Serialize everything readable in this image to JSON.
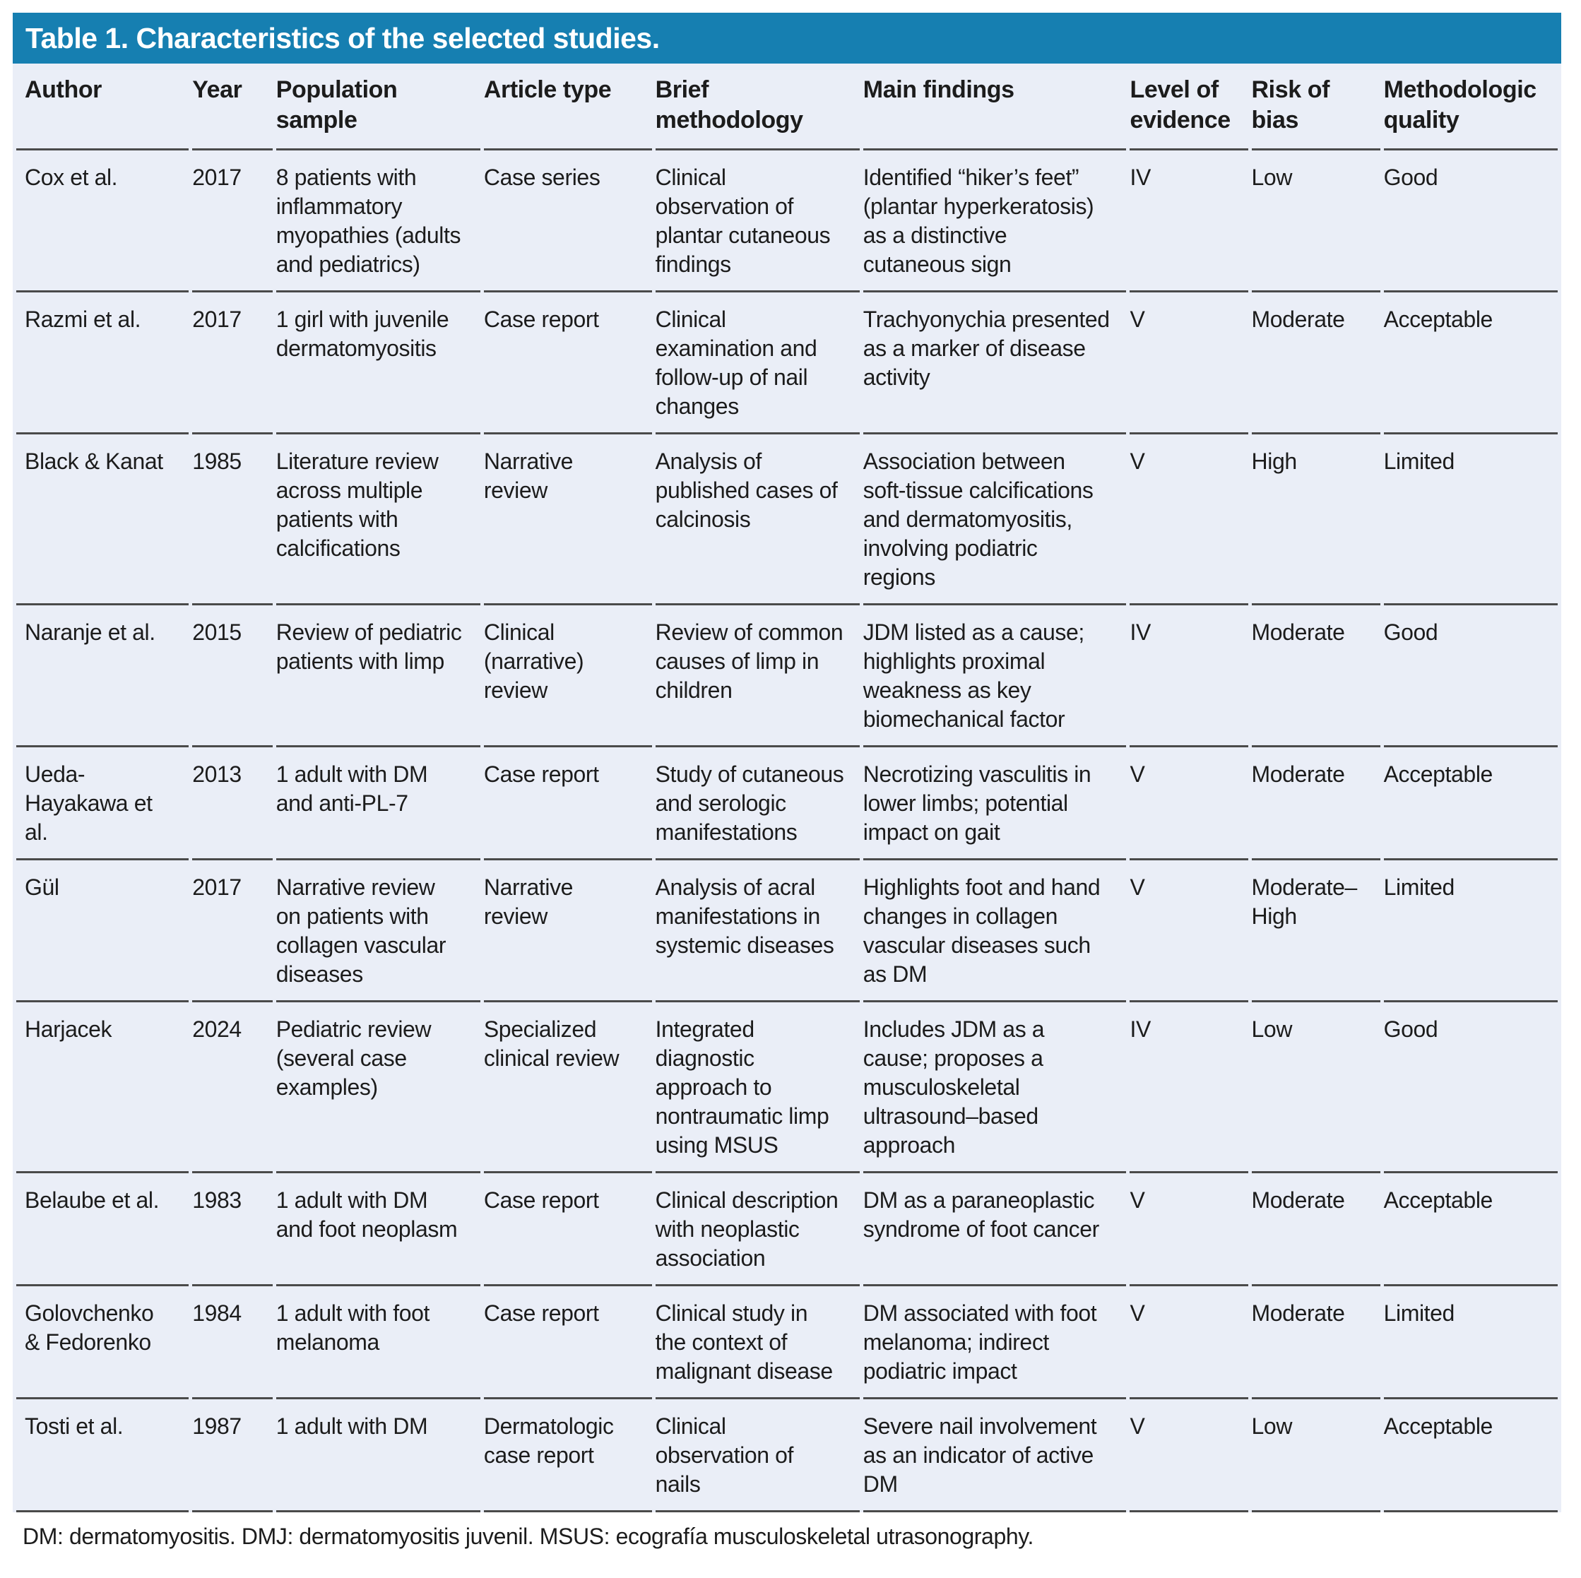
{
  "colors": {
    "title_bar_bg": "#167fb1",
    "title_bar_text": "#ffffff",
    "table_body_bg": "#eaeef7",
    "divider": "#4a4a4a",
    "text": "#1c1c1c"
  },
  "table": {
    "title": "Table 1. Characteristics of the selected studies.",
    "columns": [
      "Author",
      "Year",
      "Population sample",
      "Article type",
      "Brief methodology",
      "Main findings",
      "Level of evidence",
      "Risk of bias",
      "Methodologic quality"
    ],
    "rows": [
      {
        "author": "Cox et al.",
        "year": "2017",
        "population_sample": "8 patients with inflammatory myopathies (adults and pediatrics)",
        "article_type": "Case series",
        "brief_methodology": "Clinical observation of plantar cutaneous findings",
        "main_findings": "Identified “hiker’s feet” (plantar hyperkeratosis) as a distinctive cutaneous sign",
        "level_of_evidence": "IV",
        "risk_of_bias": "Low",
        "methodologic_quality": "Good"
      },
      {
        "author": "Razmi et al.",
        "year": "2017",
        "population_sample": "1 girl with juvenile dermatomyositis",
        "article_type": "Case report",
        "brief_methodology": "Clinical examination and follow-up of nail changes",
        "main_findings": "Trachyonychia presented as a marker of disease activity",
        "level_of_evidence": "V",
        "risk_of_bias": "Moderate",
        "methodologic_quality": "Acceptable"
      },
      {
        "author": "Black & Kanat",
        "year": "1985",
        "population_sample": "Literature review across multiple patients with calcifications",
        "article_type": "Narrative review",
        "brief_methodology": "Analysis of published cases of calcinosis",
        "main_findings": "Association between soft-tissue calcifications and dermatomyositis, involving podiatric regions",
        "level_of_evidence": "V",
        "risk_of_bias": "High",
        "methodologic_quality": "Limited"
      },
      {
        "author": "Naranje et al.",
        "year": "2015",
        "population_sample": "Review of pediatric patients with limp",
        "article_type": "Clinical (narrative) review",
        "brief_methodology": "Review of common causes of limp in children",
        "main_findings": "JDM listed as a cause; highlights proximal weakness as key biomechanical factor",
        "level_of_evidence": "IV",
        "risk_of_bias": "Moderate",
        "methodologic_quality": "Good"
      },
      {
        "author": "Ueda-Hayakawa et al.",
        "year": "2013",
        "population_sample": "1 adult with DM and anti-PL-7",
        "article_type": "Case report",
        "brief_methodology": "Study of cutaneous and serologic manifestations",
        "main_findings": "Necrotizing vasculitis in lower limbs; potential impact on gait",
        "level_of_evidence": "V",
        "risk_of_bias": "Moderate",
        "methodologic_quality": "Acceptable"
      },
      {
        "author": "Gül",
        "year": "2017",
        "population_sample": "Narrative review on patients with collagen vascular diseases",
        "article_type": "Narrative review",
        "brief_methodology": "Analysis of acral manifestations in systemic diseases",
        "main_findings": "Highlights foot and hand changes in collagen vascular diseases such as DM",
        "level_of_evidence": "V",
        "risk_of_bias": "Moderate–High",
        "methodologic_quality": "Limited"
      },
      {
        "author": "Harjacek",
        "year": "2024",
        "population_sample": "Pediatric review (several case examples)",
        "article_type": "Specialized clinical review",
        "brief_methodology": "Integrated diagnostic approach to nontraumatic limp using MSUS",
        "main_findings": "Includes JDM as a cause; proposes a musculoskeletal ultrasound–based approach",
        "level_of_evidence": "IV",
        "risk_of_bias": "Low",
        "methodologic_quality": "Good"
      },
      {
        "author": "Belaube et al.",
        "year": "1983",
        "population_sample": "1 adult with DM and foot neoplasm",
        "article_type": "Case report",
        "brief_methodology": "Clinical description with neoplastic association",
        "main_findings": "DM as a paraneoplastic syndrome of foot cancer",
        "level_of_evidence": "V",
        "risk_of_bias": "Moderate",
        "methodologic_quality": "Acceptable"
      },
      {
        "author": "Golovchenko & Fedorenko",
        "year": "1984",
        "population_sample": "1 adult with foot melanoma",
        "article_type": "Case report",
        "brief_methodology": "Clinical study in the context of malignant disease",
        "main_findings": "DM associated with foot melanoma; indirect podiatric impact",
        "level_of_evidence": "V",
        "risk_of_bias": "Moderate",
        "methodologic_quality": "Limited"
      },
      {
        "author": "Tosti et al.",
        "year": "1987",
        "population_sample": "1 adult with DM",
        "article_type": "Dermatologic case report",
        "brief_methodology": "Clinical observation of nails",
        "main_findings": "Severe nail involvement as an indicator of active DM",
        "level_of_evidence": "V",
        "risk_of_bias": "Low",
        "methodologic_quality": "Acceptable"
      }
    ],
    "footnote": "DM: dermatomyositis. DMJ: dermatomyositis juvenil. MSUS: ecografía musculoskeletal utrasonography."
  }
}
